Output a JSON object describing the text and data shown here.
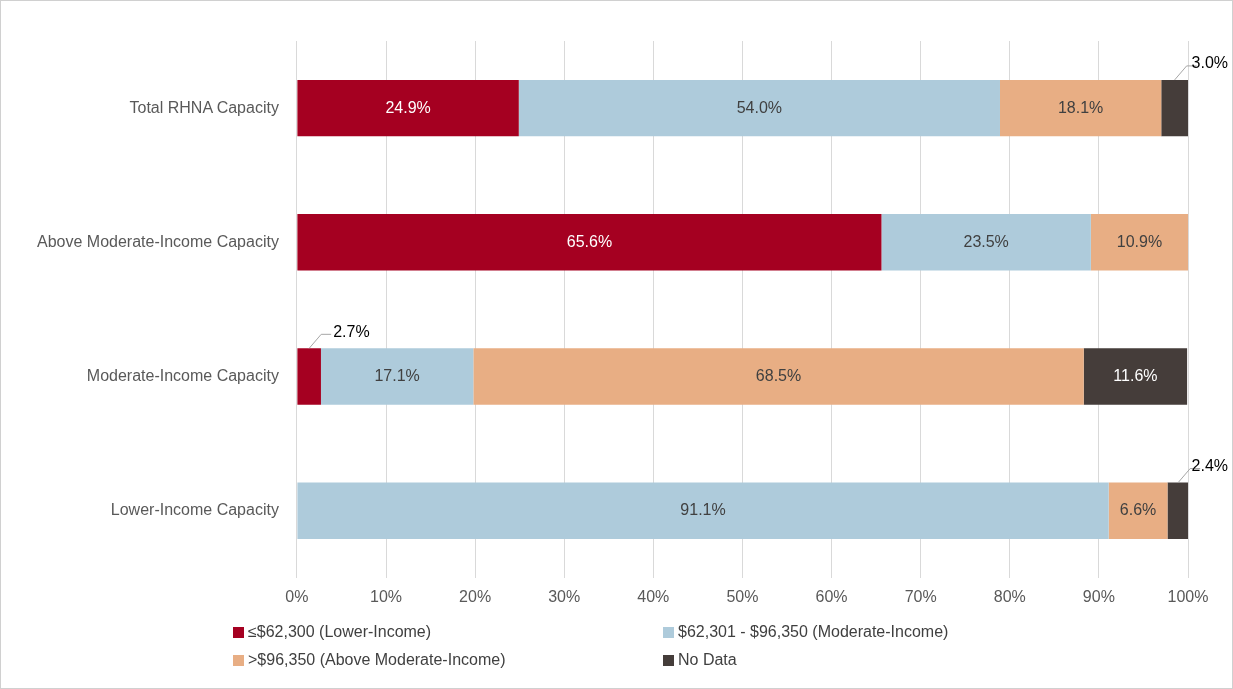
{
  "chart_data": {
    "type": "bar",
    "orientation": "horizontal",
    "stacked": true,
    "categories": [
      "Total RHNA Capacity",
      "Above Moderate-Income Capacity",
      "Moderate-Income Capacity",
      "Lower-Income Capacity"
    ],
    "series": [
      {
        "name": "≤$62,300 (Lower-Income)",
        "color": "#a50021",
        "values": [
          24.9,
          65.6,
          2.7,
          null
        ],
        "value_labels": [
          "24.9%",
          "65.6%",
          "2.7%",
          null
        ]
      },
      {
        "name": "$62,301 - $96,350 (Moderate-Income)",
        "color": "#aecbdb",
        "values": [
          54.0,
          23.5,
          17.1,
          91.1
        ],
        "value_labels": [
          "54.0%",
          "23.5%",
          "17.1%",
          "91.1%"
        ]
      },
      {
        "name": ">$96,350 (Above Moderate-Income)",
        "color": "#e8ae84",
        "values": [
          18.1,
          10.9,
          68.5,
          6.6
        ],
        "value_labels": [
          "18.1%",
          "10.9%",
          "68.5%",
          "6.6%"
        ]
      },
      {
        "name": "No Data",
        "color": "#453d3a",
        "values": [
          3.0,
          null,
          11.6,
          2.4
        ],
        "value_labels": [
          "3.0%",
          null,
          "11.6%",
          "2.4%"
        ]
      }
    ],
    "xlim": [
      0,
      100
    ],
    "xticks": [
      {
        "value": 0,
        "label": "0%"
      },
      {
        "value": 10,
        "label": "10%"
      },
      {
        "value": 20,
        "label": "20%"
      },
      {
        "value": 30,
        "label": "30%"
      },
      {
        "value": 40,
        "label": "40%"
      },
      {
        "value": 50,
        "label": "50%"
      },
      {
        "value": 60,
        "label": "60%"
      },
      {
        "value": 70,
        "label": "70%"
      },
      {
        "value": 80,
        "label": "80%"
      },
      {
        "value": 90,
        "label": "90%"
      },
      {
        "value": 100,
        "label": "100%"
      }
    ],
    "grid": "x",
    "legend": "bottom left"
  }
}
